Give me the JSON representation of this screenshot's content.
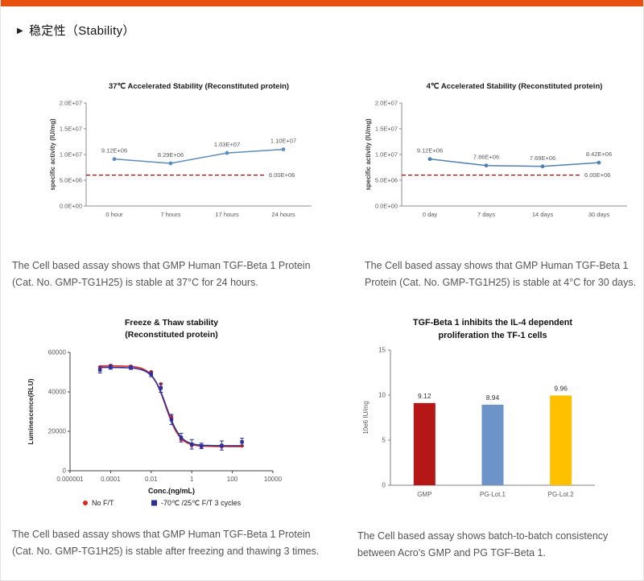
{
  "page": {
    "accent_color": "#E8500F"
  },
  "header": {
    "bullet": "▶",
    "title": "稳定性（Stability）"
  },
  "captions": {
    "top_left": "The Cell based assay shows that GMP Human TGF-Beta 1 Protein (Cat. No. GMP-TG1H25) is stable at 37°C for 24 hours.",
    "top_right": "The Cell based assay shows that GMP Human TGF-Beta 1 Protein (Cat. No. GMP-TG1H25) is stable at 4°C for 30 days.",
    "bottom_left": "The Cell based assay shows that GMP Human TGF-Beta 1 Protein (Cat. No. GMP-TG1H25) is stable after freezing and thawing 3 times.",
    "bottom_right": "The Cell based assay shows batch-to-batch consistency between Acro's GMP and PG TGF-Beta 1."
  },
  "chart_data": [
    {
      "id": "stability-37c",
      "type": "line",
      "title": "37℃ Accelerated  Stability (Reconstituted protein)",
      "ylabel": "specific activity (IU/mg)",
      "categories": [
        "0 hour",
        "7 hours",
        "17 hours",
        "24 hours"
      ],
      "values": [
        9120000,
        8290000,
        10300000,
        11000000
      ],
      "point_labels": [
        "9.12E+06",
        "8.29E+06",
        "1.03E+07",
        "1.10E+07"
      ],
      "ylim": [
        0,
        20000000
      ],
      "yticks": [
        0,
        5000000,
        10000000,
        15000000,
        20000000
      ],
      "ytick_labels": [
        "0.0E+00",
        "5.0E+06",
        "1.0E+07",
        "1.5E+07",
        "2.0E+07"
      ],
      "line_color": "#5B8DC0",
      "reference_line": {
        "value": 6000000,
        "label": "6.00E+06",
        "color": "#C00000",
        "style": "dashed"
      }
    },
    {
      "id": "stability-4c",
      "type": "line",
      "title": "4℃ Accelerated  Stability (Reconstituted protein)",
      "ylabel": "specific activity (IU/mg)",
      "categories": [
        "0 day",
        "7 days",
        "14 days",
        "30 days"
      ],
      "values": [
        9120000,
        7860000,
        7690000,
        8420000
      ],
      "point_labels": [
        "9.12E+06",
        "7.86E+06",
        "7.69E+06",
        "8.42E+06"
      ],
      "ylim": [
        0,
        20000000
      ],
      "yticks": [
        0,
        5000000,
        10000000,
        15000000,
        20000000
      ],
      "ytick_labels": [
        "0.0E+00",
        "5.0E+06",
        "1.0E+07",
        "1.5E+07",
        "2.0E+07"
      ],
      "line_color": "#4E7FB5",
      "reference_line": {
        "value": 6000000,
        "label": "6.00E+06",
        "color": "#C00000",
        "style": "dashed"
      }
    },
    {
      "id": "freeze-thaw",
      "type": "dose",
      "title_lines": [
        "Freeze & Thaw stability",
        "(Reconstituted protein)"
      ],
      "xlabel": "Conc.(ng/mL)",
      "ylabel": "Luminescence(RLU)",
      "x_scale": "log",
      "xlim_log": [
        -6,
        4
      ],
      "xticks": [
        1e-06,
        0.0001,
        0.01,
        1,
        100,
        10000
      ],
      "xtick_labels": [
        "0.000001",
        "0.0001",
        "0.01",
        "1",
        "100",
        "10000"
      ],
      "ylim": [
        0,
        60000
      ],
      "yticks": [
        0,
        20000,
        40000,
        60000
      ],
      "ytick_labels": [
        "0",
        "20000",
        "40000",
        "60000"
      ],
      "series": [
        {
          "name": "No F/T",
          "color": "#E0261C",
          "marker": "circle",
          "x": [
            3e-05,
            0.0001,
            0.001,
            0.01,
            0.03,
            0.1,
            0.3,
            1,
            3,
            30,
            300
          ],
          "y": [
            52600,
            53400,
            53000,
            50200,
            44000,
            27500,
            15800,
            12800,
            12200,
            12100,
            12600
          ],
          "fit": {
            "top": 53200,
            "bottom": 12300,
            "ec50": 0.052,
            "hill": 1.25
          }
        },
        {
          "name": "-70℃ /25℃  F/T 3 cycles",
          "color": "#2B2F9E",
          "marker": "square",
          "x": [
            3e-05,
            0.0001,
            0.001,
            0.01,
            0.03,
            0.1,
            0.3,
            1,
            3,
            30,
            300
          ],
          "y": [
            51200,
            52600,
            52300,
            49000,
            42000,
            26000,
            16800,
            13400,
            12600,
            12800,
            14600
          ],
          "y_err": [
            1600,
            1100,
            900,
            1300,
            2200,
            2600,
            2200,
            2400,
            1400,
            2300,
            1900
          ],
          "fit": {
            "top": 52400,
            "bottom": 12700,
            "ec50": 0.056,
            "hill": 1.25
          }
        }
      ]
    },
    {
      "id": "batch-consistency",
      "type": "bar",
      "title_lines": [
        "TGF-Beta 1  inhibits the IL-4 dependent",
        "proliferation the TF-1 cells"
      ],
      "ylabel": "10e6 IU/mg",
      "categories": [
        "GMP",
        "PG-Lot.1",
        "PG-Lot.2"
      ],
      "values": [
        9.12,
        8.94,
        9.96
      ],
      "value_labels": [
        "9.12",
        "8.94",
        "9.96"
      ],
      "bar_colors": [
        "#B51717",
        "#6D94C9",
        "#FFC000"
      ],
      "ylim": [
        0,
        15
      ],
      "yticks": [
        0,
        5,
        10,
        15
      ],
      "ytick_labels": [
        "0",
        "5",
        "10",
        "15"
      ]
    }
  ]
}
